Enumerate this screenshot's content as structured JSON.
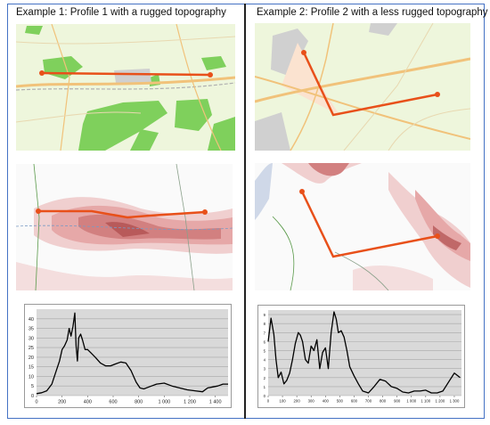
{
  "examples": [
    {
      "title": "Example 1: Profile 1 with a rugged topography",
      "chart_data": {
        "type": "line",
        "xlabel": "",
        "ylabel": "",
        "xlim": [
          0,
          1500
        ],
        "ylim": [
          0,
          45
        ],
        "xticks": [
          "0",
          "200",
          "400",
          "600",
          "800",
          "1 000",
          "1 200",
          "1 400"
        ],
        "xtick_values": [
          0,
          200,
          400,
          600,
          800,
          1000,
          1200,
          1400
        ],
        "yticks": [
          "0",
          "5",
          "10",
          "15",
          "20",
          "25",
          "30",
          "35",
          "40"
        ],
        "ytick_values": [
          0,
          5,
          10,
          15,
          20,
          25,
          30,
          35,
          40
        ],
        "grid": true,
        "series": [
          {
            "x": [
              0,
              40,
              80,
              120,
              160,
              180,
              200,
              220,
              240,
              255,
              270,
              285,
              300,
              310,
              320,
              330,
              345,
              360,
              380,
              400,
              430,
              460,
              500,
              540,
              580,
              620,
              660,
              700,
              740,
              780,
              810,
              840,
              880,
              940,
              1000,
              1060,
              1120,
              1180,
              1240,
              1300,
              1340,
              1380,
              1420,
              1460,
              1500
            ],
            "y": [
              1,
              1.5,
              2.5,
              6,
              14,
              18,
              24,
              26,
              29,
              35,
              31,
              36,
              43,
              26,
              18,
              30,
              32,
              29,
              24,
              24,
              22,
              20,
              17,
              15.5,
              15.5,
              16.5,
              17.5,
              17,
              13,
              7,
              4,
              3.5,
              4.5,
              6,
              6.5,
              5,
              4,
              3,
              2.5,
              2,
              4,
              4.5,
              5,
              6,
              6
            ]
          }
        ]
      }
    },
    {
      "title": "Example 2: Profile 2 with a less rugged topography",
      "chart_data": {
        "type": "line",
        "xlabel": "",
        "ylabel": "",
        "xlim": [
          0,
          1350
        ],
        "ylim": [
          0,
          9.5
        ],
        "xticks": [
          "0",
          "100",
          "200",
          "300",
          "400",
          "500",
          "600",
          "700",
          "800",
          "900",
          "1 000",
          "1 100",
          "1 200",
          "1 300"
        ],
        "xtick_values": [
          0,
          100,
          200,
          300,
          400,
          500,
          600,
          700,
          800,
          900,
          1000,
          1100,
          1200,
          1300
        ],
        "yticks": [
          "0",
          "1",
          "2",
          "3",
          "4",
          "5",
          "6",
          "7",
          "8",
          "9"
        ],
        "ytick_values": [
          0,
          1,
          2,
          3,
          4,
          5,
          6,
          7,
          8,
          9
        ],
        "grid": true,
        "series": [
          {
            "x": [
              0,
              20,
              40,
              55,
              70,
              90,
              110,
              130,
              150,
              170,
              190,
              210,
              225,
              240,
              260,
              280,
              300,
              320,
              340,
              360,
              380,
              400,
              420,
              440,
              460,
              475,
              490,
              510,
              530,
              550,
              570,
              600,
              630,
              660,
              700,
              740,
              780,
              820,
              860,
              900,
              940,
              980,
              1020,
              1060,
              1100,
              1140,
              1180,
              1220,
              1260,
              1300,
              1340
            ],
            "y": [
              6,
              8.6,
              6.8,
              4,
              2,
              2.6,
              1.3,
              1.7,
              2.5,
              4,
              5.8,
              7,
              6.7,
              6,
              4,
              3.6,
              5.5,
              5,
              6.2,
              3,
              4.8,
              5.3,
              3,
              7,
              9.3,
              8.5,
              7,
              7.2,
              6.5,
              5,
              3.2,
              2.2,
              1.3,
              0.5,
              0.3,
              1,
              1.8,
              1.6,
              1,
              0.8,
              0.4,
              0.3,
              0.5,
              0.5,
              0.6,
              0.3,
              0.3,
              0.5,
              1.5,
              2.5,
              2
            ]
          }
        ]
      }
    }
  ]
}
